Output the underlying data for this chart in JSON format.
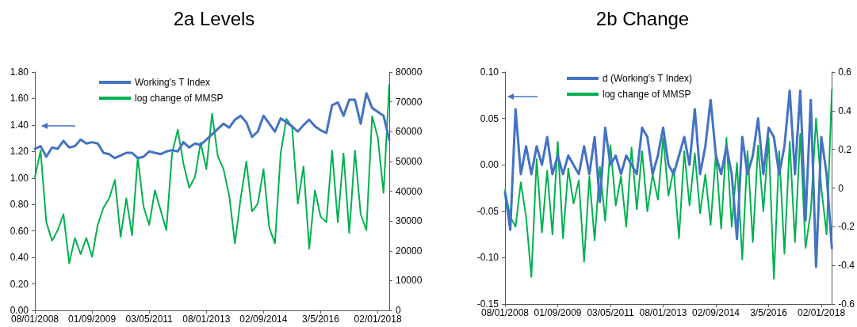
{
  "chart_data": [
    {
      "type": "line",
      "title": "2a Levels",
      "legend": "top",
      "marker": "none",
      "grid": false,
      "categories": [
        "08/01/2008",
        null,
        null,
        null,
        null,
        null,
        null,
        null,
        null,
        null,
        "01/09/2009",
        null,
        null,
        null,
        null,
        null,
        null,
        null,
        null,
        null,
        "03/05/2011",
        null,
        null,
        null,
        null,
        null,
        null,
        null,
        null,
        null,
        "08/01/2013",
        null,
        null,
        null,
        null,
        null,
        null,
        null,
        null,
        null,
        "02/09/2014",
        null,
        null,
        null,
        null,
        null,
        null,
        null,
        null,
        null,
        "3/5/2016",
        null,
        null,
        null,
        null,
        null,
        null,
        null,
        null,
        null,
        "02/01/2018",
        null,
        null
      ],
      "ylim": [
        0,
        1.8
      ],
      "yticks": [
        {
          "value": 0,
          "label": "0.00"
        },
        {
          "value": 0.2,
          "label": "0.20"
        },
        {
          "value": 0.4,
          "label": "0.40"
        },
        {
          "value": 0.6,
          "label": "0.60"
        },
        {
          "value": 0.8,
          "label": "0.80"
        },
        {
          "value": 1,
          "label": "1.00"
        },
        {
          "value": 1.2,
          "label": "1.20"
        },
        {
          "value": 1.4,
          "label": "1.40"
        },
        {
          "value": 1.6,
          "label": "1.60"
        },
        {
          "value": 1.8,
          "label": "1.80"
        }
      ],
      "y2lim": [
        0,
        80000
      ],
      "y2ticks": [
        0,
        10000,
        20000,
        30000,
        40000,
        50000,
        60000,
        70000,
        80000
      ],
      "series": [
        {
          "name": "Working's T Index",
          "color": "#4472c4",
          "values": [
            1.22,
            1.24,
            1.16,
            1.23,
            1.22,
            1.28,
            1.23,
            1.24,
            1.29,
            1.26,
            1.27,
            1.26,
            1.19,
            1.18,
            1.15,
            1.17,
            1.19,
            1.19,
            1.15,
            1.16,
            1.2,
            1.19,
            1.18,
            1.2,
            1.21,
            1.2,
            1.27,
            1.23,
            1.26,
            1.25,
            1.29,
            1.33,
            1.37,
            1.41,
            1.38,
            1.44,
            1.47,
            1.42,
            1.31,
            1.35,
            1.47,
            1.41,
            1.35,
            1.45,
            1.42,
            1.39,
            1.35,
            1.4,
            1.44,
            1.39,
            1.36,
            1.34,
            1.55,
            1.57,
            1.47,
            1.59,
            1.59,
            1.41,
            1.64,
            1.53,
            1.5,
            1.47,
            1.29
          ]
        },
        {
          "name": "log change of MMSP",
          "color": "#00b050",
          "axis": "y2",
          "values": [
            44700,
            53600,
            29600,
            23400,
            26900,
            32300,
            15800,
            24300,
            18900,
            24300,
            18000,
            28700,
            34500,
            37600,
            43800,
            24700,
            37600,
            25200,
            51400,
            34900,
            28700,
            40300,
            33600,
            26900,
            52700,
            60700,
            49200,
            41200,
            44700,
            56300,
            47400,
            66000,
            51800,
            47400,
            38500,
            22500,
            37600,
            50000,
            33200,
            35800,
            47400,
            27800,
            22500,
            52700,
            64300,
            61600,
            35800,
            48300,
            20700,
            40300,
            31400,
            29600,
            53600,
            29600,
            52700,
            26000,
            53600,
            32300,
            26900,
            65200,
            58000,
            39400,
            75800
          ]
        }
      ]
    },
    {
      "type": "line",
      "title": "2b Change",
      "legend": "top",
      "marker": "none",
      "grid": false,
      "categories": [
        "08/01/2008",
        null,
        null,
        null,
        null,
        null,
        null,
        null,
        null,
        null,
        "01/09/2009",
        null,
        null,
        null,
        null,
        null,
        null,
        null,
        null,
        null,
        "03/05/2011",
        null,
        null,
        null,
        null,
        null,
        null,
        null,
        null,
        null,
        "08/01/2013",
        null,
        null,
        null,
        null,
        null,
        null,
        null,
        null,
        null,
        "02/09/2014",
        null,
        null,
        null,
        null,
        null,
        null,
        null,
        null,
        null,
        "3/5/2016",
        null,
        null,
        null,
        null,
        null,
        null,
        null,
        null,
        null,
        "02/01/2018",
        null,
        null
      ],
      "ylim": [
        -0.15,
        0.1
      ],
      "yticks": [
        {
          "value": -0.15,
          "label": "-0.15"
        },
        {
          "value": -0.1,
          "label": "-0.10"
        },
        {
          "value": -0.05,
          "label": "-0.05"
        },
        {
          "value": 0,
          "label": "0.00"
        },
        {
          "value": 0.05,
          "label": "0.05"
        },
        {
          "value": 0.1,
          "label": "0.10"
        }
      ],
      "y2lim": [
        -0.6,
        0.6
      ],
      "y2ticks": [
        -0.6,
        -0.4,
        -0.2,
        0,
        0.2,
        0.4,
        0.6
      ],
      "series": [
        {
          "name": "d (Working's T Index)",
          "color": "#4472c4",
          "values": [
            -0.03,
            -0.07,
            0.06,
            -0.01,
            0.02,
            -0.01,
            0.02,
            0,
            0.03,
            -0.01,
            0.01,
            -0.01,
            0.01,
            0,
            -0.01,
            0.02,
            -0.01,
            0.03,
            -0.04,
            0.04,
            0,
            0.01,
            -0.01,
            0.01,
            0,
            -0.01,
            0.04,
            0.03,
            -0.01,
            0.01,
            0.04,
            0,
            -0.01,
            0.01,
            0.03,
            0,
            0.06,
            -0.01,
            0.02,
            0.07,
            0.01,
            -0.01,
            0.02,
            -0.01,
            -0.08,
            0.03,
            -0.01,
            0.01,
            0.05,
            -0.01,
            0.04,
            0.03,
            -0.01,
            0.02,
            0.08,
            -0.01,
            0.08,
            -0.06,
            0.07,
            -0.11,
            0.03,
            -0.01,
            -0.09
          ]
        },
        {
          "name": "log change of MMSP",
          "color": "#00b050",
          "axis": "y2",
          "values": [
            -0.01,
            -0.15,
            -0.2,
            0.03,
            -0.15,
            -0.46,
            0.15,
            -0.23,
            0.09,
            -0.24,
            0.24,
            -0.26,
            0.1,
            -0.08,
            0.04,
            -0.38,
            0.06,
            -0.27,
            0.11,
            -0.17,
            0.22,
            -0.09,
            0.06,
            -0.2,
            0.21,
            -0.11,
            0.19,
            -0.12,
            0.07,
            -0.06,
            0.26,
            -0.04,
            0.1,
            -0.26,
            0.19,
            -0.09,
            0.18,
            -0.13,
            0.07,
            -0.19,
            0.18,
            -0.21,
            0.26,
            -0.2,
            0.13,
            -0.37,
            0.19,
            -0.28,
            0.22,
            -0.12,
            0.26,
            -0.47,
            0.19,
            -0.34,
            0.24,
            -0.28,
            0.28,
            -0.31,
            -0.12,
            0.36,
            0,
            -0.24,
            0.51
          ]
        }
      ]
    }
  ]
}
